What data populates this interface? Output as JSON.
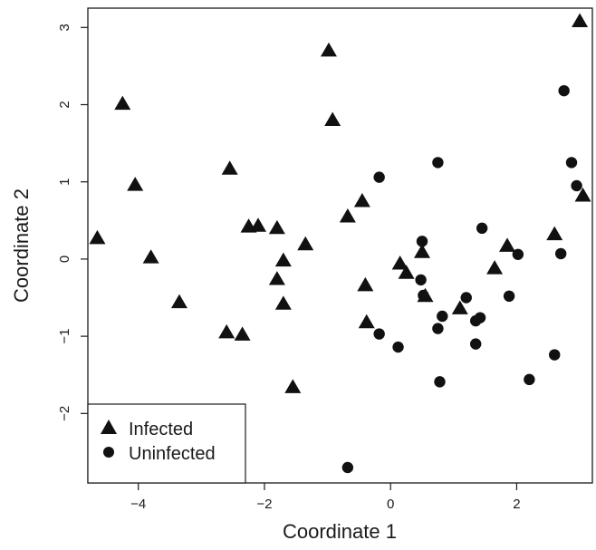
{
  "chart_data": {
    "type": "scatter",
    "title": "",
    "xlabel": "Coordinate 1",
    "ylabel": "Coordinate 2",
    "xlim": [
      -4.8,
      3.2
    ],
    "ylim": [
      -2.9,
      3.25
    ],
    "x_ticks": [
      -4,
      -2,
      0,
      2
    ],
    "y_ticks": [
      -2,
      -1,
      0,
      1,
      2,
      3
    ],
    "grid": false,
    "legend": {
      "position": "bottom-left",
      "entries": [
        "Infected",
        "Uninfected"
      ]
    },
    "series": [
      {
        "name": "Infected",
        "marker": "triangle",
        "color": "#111111",
        "points": [
          [
            -4.65,
            0.27
          ],
          [
            -4.25,
            2.01
          ],
          [
            -4.05,
            0.96
          ],
          [
            -3.8,
            0.02
          ],
          [
            -3.35,
            -0.56
          ],
          [
            -2.6,
            -0.95
          ],
          [
            -2.55,
            1.17
          ],
          [
            -2.35,
            -0.98
          ],
          [
            -2.25,
            0.42
          ],
          [
            -2.1,
            0.43
          ],
          [
            -1.8,
            0.4
          ],
          [
            -1.8,
            -0.26
          ],
          [
            -1.7,
            -0.02
          ],
          [
            -1.7,
            -0.58
          ],
          [
            -1.55,
            -1.66
          ],
          [
            -1.35,
            0.19
          ],
          [
            -0.98,
            2.7
          ],
          [
            -0.92,
            1.8
          ],
          [
            -0.68,
            0.55
          ],
          [
            -0.45,
            0.75
          ],
          [
            -0.4,
            -0.34
          ],
          [
            -0.38,
            -0.82
          ],
          [
            0.15,
            -0.06
          ],
          [
            0.25,
            -0.18
          ],
          [
            0.5,
            0.09
          ],
          [
            0.55,
            -0.48
          ],
          [
            1.1,
            -0.64
          ],
          [
            1.65,
            -0.12
          ],
          [
            1.85,
            0.17
          ],
          [
            2.6,
            0.32
          ],
          [
            3.0,
            3.08
          ],
          [
            3.05,
            0.82
          ]
        ]
      },
      {
        "name": "Uninfected",
        "marker": "circle",
        "color": "#111111",
        "points": [
          [
            -0.18,
            1.06
          ],
          [
            -0.18,
            -0.97
          ],
          [
            0.12,
            -1.14
          ],
          [
            0.48,
            -0.27
          ],
          [
            0.5,
            0.23
          ],
          [
            0.52,
            -0.47
          ],
          [
            0.75,
            1.25
          ],
          [
            0.75,
            -0.9
          ],
          [
            0.78,
            -1.59
          ],
          [
            0.82,
            -0.74
          ],
          [
            1.2,
            -0.5
          ],
          [
            1.35,
            -0.8
          ],
          [
            1.35,
            -1.1
          ],
          [
            1.42,
            -0.76
          ],
          [
            1.45,
            0.4
          ],
          [
            1.88,
            -0.48
          ],
          [
            2.02,
            0.06
          ],
          [
            2.2,
            -1.56
          ],
          [
            2.6,
            -1.24
          ],
          [
            2.7,
            0.07
          ],
          [
            2.75,
            2.18
          ],
          [
            2.87,
            1.25
          ],
          [
            2.95,
            0.95
          ],
          [
            -0.68,
            -2.7
          ]
        ]
      }
    ]
  }
}
